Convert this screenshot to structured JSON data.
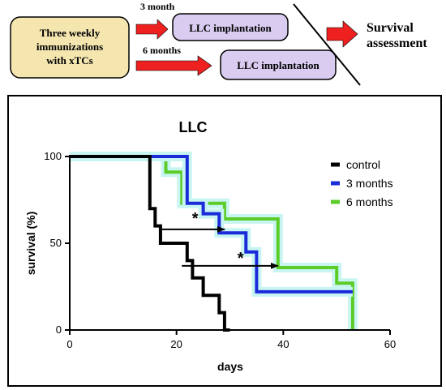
{
  "schematic": {
    "immunization_box": {
      "line1": "Three weekly",
      "line2": "immunizations",
      "line3": "with xTCs"
    },
    "label_3_month": "3 month",
    "label_6_months": "6 months",
    "implant_3_month": "LLC implantation",
    "implant_6_months": "LLC implantation",
    "survival_line1": "Survival",
    "survival_line2": "assessment",
    "colors": {
      "immunization_fill": "#f5e6b0",
      "implant_fill": "#d9ccf0",
      "arrow": "#ee2020"
    }
  },
  "chart_data": {
    "type": "line",
    "step": true,
    "title": "LLC",
    "xlabel": "days",
    "ylabel": "survival (%)",
    "xlim": [
      0,
      60
    ],
    "ylim": [
      0,
      100
    ],
    "x_ticks": [
      0,
      20,
      40,
      60
    ],
    "y_ticks": [
      0,
      50,
      100
    ],
    "x_tick_labels": [
      "0",
      "20",
      "40",
      "60"
    ],
    "y_tick_labels": [
      "0",
      "50",
      "100"
    ],
    "grid": false,
    "legend_position": "top-right",
    "series": [
      {
        "name": "control",
        "color": "#000000",
        "points": [
          [
            0,
            100
          ],
          [
            15,
            100
          ],
          [
            15,
            70
          ],
          [
            16,
            70
          ],
          [
            16,
            60
          ],
          [
            17,
            60
          ],
          [
            17,
            50
          ],
          [
            22,
            50
          ],
          [
            22,
            40
          ],
          [
            23,
            40
          ],
          [
            23,
            30
          ],
          [
            25,
            30
          ],
          [
            25,
            20
          ],
          [
            28,
            20
          ],
          [
            28,
            10
          ],
          [
            29,
            10
          ],
          [
            29,
            0
          ],
          [
            30,
            0
          ]
        ]
      },
      {
        "name": "3 months",
        "color": "#1a2bd9",
        "points": [
          [
            0,
            100
          ],
          [
            22,
            100
          ],
          [
            22,
            73
          ],
          [
            25,
            73
          ],
          [
            25,
            67
          ],
          [
            28,
            67
          ],
          [
            28,
            56
          ],
          [
            33,
            56
          ],
          [
            33,
            45
          ],
          [
            35,
            45
          ],
          [
            35,
            22
          ],
          [
            53,
            22
          ]
        ]
      },
      {
        "name": "6 months",
        "color": "#5ccc28",
        "points": [
          [
            0,
            100
          ],
          [
            18,
            100
          ],
          [
            18,
            91
          ],
          [
            21,
            91
          ],
          [
            21,
            73
          ],
          [
            29,
            73
          ],
          [
            29,
            64
          ],
          [
            39,
            64
          ],
          [
            39,
            36
          ],
          [
            50,
            36
          ],
          [
            50,
            27
          ],
          [
            53,
            27
          ],
          [
            53,
            0
          ]
        ]
      }
    ],
    "annotations": [
      {
        "text": "*",
        "arrow_from": [
          17,
          58
        ],
        "arrow_to": [
          29,
          58
        ],
        "label_x": 23.5,
        "label_y": 65
      },
      {
        "text": "*",
        "arrow_from": [
          21,
          37
        ],
        "arrow_to": [
          39,
          37
        ],
        "label_x": 32,
        "label_y": 42
      }
    ]
  }
}
